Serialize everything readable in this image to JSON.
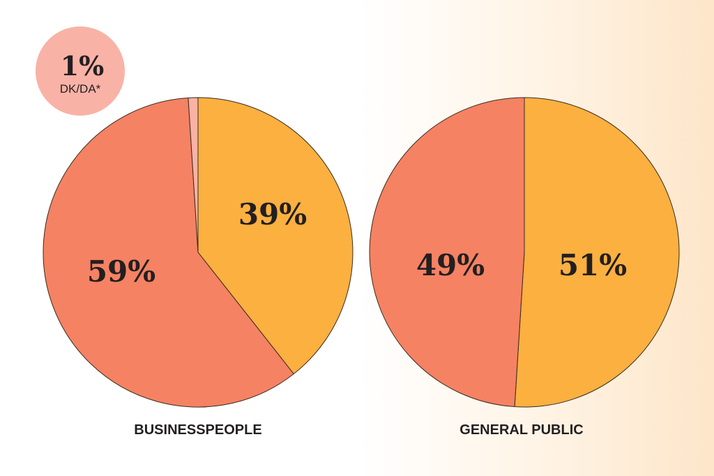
{
  "chart_data": [
    {
      "type": "pie",
      "title": "BUSINESSPEOPLE",
      "slices": [
        {
          "label": "39%",
          "value": 39,
          "color": "#fbb040"
        },
        {
          "label": "59%",
          "value": 59,
          "color": "#f58263"
        },
        {
          "label": "1%",
          "value": 1,
          "color": "#f9b2a6",
          "sublabel": "DK/DA*"
        }
      ]
    },
    {
      "type": "pie",
      "title": "GENERAL PUBLIC",
      "slices": [
        {
          "label": "51%",
          "value": 51,
          "color": "#fbb040"
        },
        {
          "label": "49%",
          "value": 49,
          "color": "#f58263"
        }
      ]
    }
  ],
  "colors": {
    "stroke": "#3a2a1e",
    "badge": "#f9b2a6",
    "text": "#231f20"
  }
}
